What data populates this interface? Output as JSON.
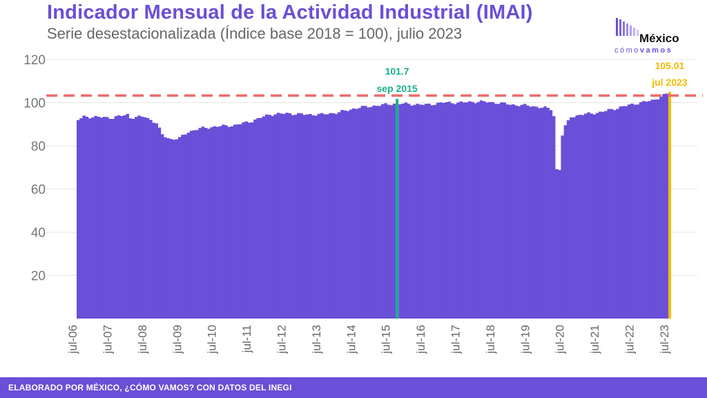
{
  "title": "Indicador Mensual de la Actividad Industrial (IMAI)",
  "subtitle": "Serie desestacionalizada (Índice base 2018 = 100), julio 2023",
  "logo": {
    "main": "México",
    "sub_light": "cómo",
    "sub_bold": "vamos"
  },
  "footer": "ELABORADO POR MÉXICO, ¿CÓMO VAMOS? CON DATOS DEL INEGI",
  "colors": {
    "bars": "#6a4fd8",
    "highlight_peak": "#1ab08a",
    "highlight_last": "#f5b800",
    "reference_line": "#ef6b6b"
  },
  "chart_data": {
    "type": "bar",
    "start": "2006-07",
    "end": "2023-07",
    "ylim": [
      0,
      120
    ],
    "yticks": [
      20,
      40,
      60,
      80,
      100,
      120
    ],
    "xticks": [
      "jul-06",
      "jul-07",
      "jul-08",
      "jul-09",
      "jul-10",
      "jul-11",
      "jul-12",
      "jul-13",
      "jul-14",
      "jul-15",
      "jul-16",
      "jul-17",
      "jul-18",
      "jul-19",
      "jul-20",
      "jul-21",
      "jul-22",
      "jul-23"
    ],
    "reference_line": 103.3,
    "annotations": [
      {
        "value": "101.7",
        "label": "sep 2015",
        "date": "2015-09"
      },
      {
        "value": "105.01",
        "label": "jul 2023",
        "date": "2023-07"
      }
    ],
    "anchors": [
      [
        "2006-07",
        92.0
      ],
      [
        "2006-09",
        93.5
      ],
      [
        "2007-07",
        93.0
      ],
      [
        "2007-12",
        94.5
      ],
      [
        "2008-01",
        93.0
      ],
      [
        "2008-06",
        93.5
      ],
      [
        "2008-10",
        90.5
      ],
      [
        "2008-12",
        85.0
      ],
      [
        "2009-03",
        83.0
      ],
      [
        "2009-06",
        83.5
      ],
      [
        "2009-09",
        86.5
      ],
      [
        "2010-01",
        88.0
      ],
      [
        "2010-07",
        89.0
      ],
      [
        "2011-01",
        89.5
      ],
      [
        "2011-07",
        91.5
      ],
      [
        "2012-01",
        94.5
      ],
      [
        "2012-07",
        95.0
      ],
      [
        "2013-01",
        94.5
      ],
      [
        "2013-07",
        94.5
      ],
      [
        "2014-01",
        95.5
      ],
      [
        "2014-07",
        97.5
      ],
      [
        "2015-01",
        98.5
      ],
      [
        "2015-08",
        99.5
      ],
      [
        "2015-09",
        101.7
      ],
      [
        "2015-10",
        99.5
      ],
      [
        "2016-07",
        99.0
      ],
      [
        "2017-01",
        100.0
      ],
      [
        "2017-07",
        100.0
      ],
      [
        "2018-01",
        100.5
      ],
      [
        "2018-07",
        100.0
      ],
      [
        "2019-01",
        99.0
      ],
      [
        "2019-07",
        98.5
      ],
      [
        "2019-12",
        97.5
      ],
      [
        "2020-02",
        97.0
      ],
      [
        "2020-03",
        94.0
      ],
      [
        "2020-04",
        69.0
      ],
      [
        "2020-05",
        69.0
      ],
      [
        "2020-06",
        85.0
      ],
      [
        "2020-07",
        89.0
      ],
      [
        "2020-09",
        93.5
      ],
      [
        "2021-01",
        94.5
      ],
      [
        "2021-07",
        95.5
      ],
      [
        "2022-01",
        97.5
      ],
      [
        "2022-07",
        99.5
      ],
      [
        "2023-01",
        101.0
      ],
      [
        "2023-06",
        104.0
      ],
      [
        "2023-07",
        105.01
      ]
    ]
  }
}
